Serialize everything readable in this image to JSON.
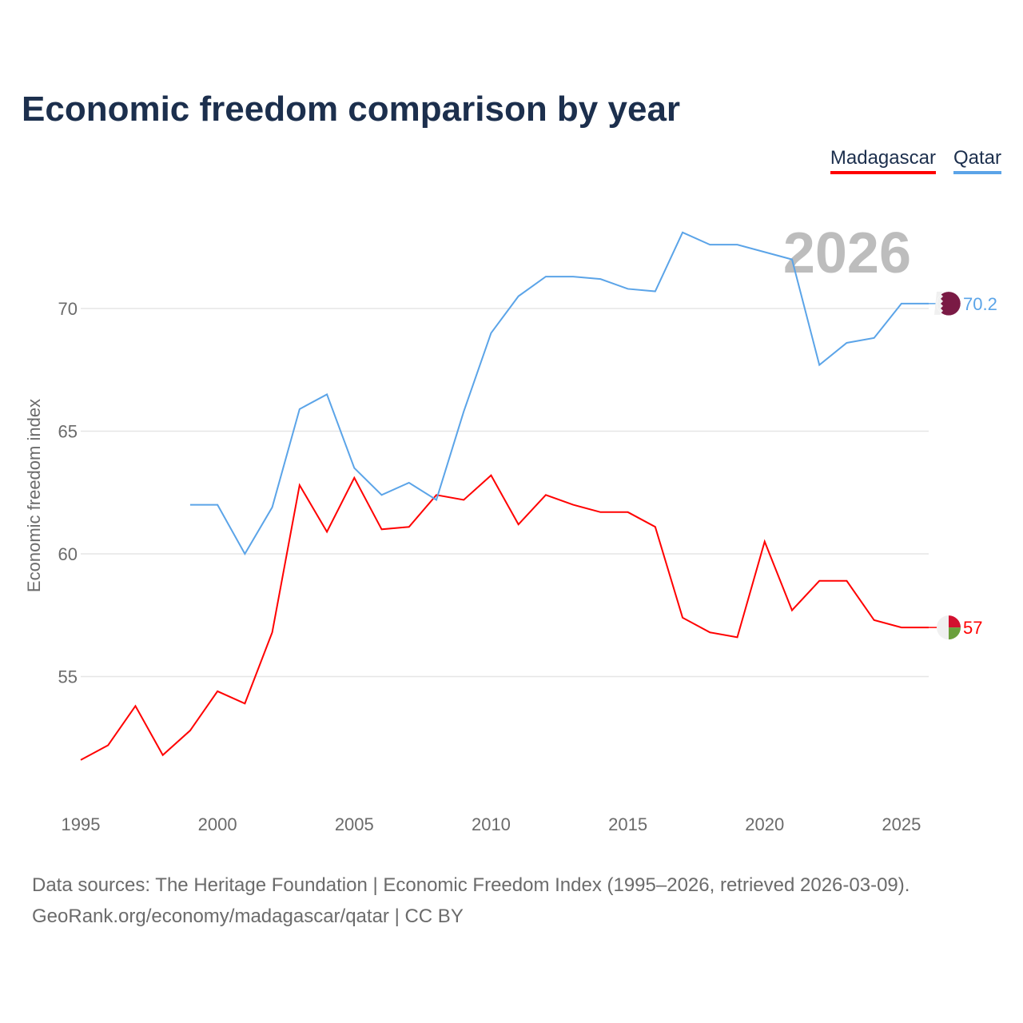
{
  "chart_data": {
    "type": "line",
    "title": "Economic freedom comparison by year",
    "xlabel": "",
    "ylabel": "Economic freedom index",
    "year_label": "2026",
    "xlim": [
      1995,
      2026
    ],
    "ylim": [
      50.5,
      74
    ],
    "x_ticks": [
      1995,
      2000,
      2005,
      2010,
      2015,
      2020,
      2025
    ],
    "y_ticks": [
      55,
      60,
      65,
      70
    ],
    "grid": true,
    "legend_placement": "top-right",
    "series": [
      {
        "name": "Madagascar",
        "color": "#ff0000",
        "end_label": "57",
        "x": [
          1995,
          1996,
          1997,
          1998,
          1999,
          2000,
          2001,
          2002,
          2003,
          2004,
          2005,
          2006,
          2007,
          2008,
          2009,
          2010,
          2011,
          2012,
          2013,
          2014,
          2015,
          2016,
          2017,
          2018,
          2019,
          2020,
          2021,
          2022,
          2023,
          2024,
          2025,
          2026
        ],
        "values": [
          51.6,
          52.2,
          53.8,
          51.8,
          52.8,
          54.4,
          53.9,
          56.8,
          62.8,
          60.9,
          63.1,
          61.0,
          61.1,
          62.4,
          62.2,
          63.2,
          61.2,
          62.4,
          62.0,
          61.7,
          61.7,
          61.1,
          57.4,
          56.8,
          56.6,
          60.5,
          57.7,
          58.9,
          58.9,
          57.3,
          57.0,
          57.0
        ]
      },
      {
        "name": "Qatar",
        "color": "#5ba4e8",
        "end_label": "70.2",
        "x": [
          1999,
          2000,
          2001,
          2002,
          2003,
          2004,
          2005,
          2006,
          2007,
          2008,
          2009,
          2010,
          2011,
          2012,
          2013,
          2014,
          2015,
          2016,
          2017,
          2018,
          2019,
          2020,
          2021,
          2022,
          2023,
          2024,
          2025,
          2026
        ],
        "values": [
          62.0,
          62.0,
          60.0,
          61.9,
          65.9,
          66.5,
          63.5,
          62.4,
          62.9,
          62.2,
          65.8,
          69.0,
          70.5,
          71.3,
          71.3,
          71.2,
          70.8,
          70.7,
          73.1,
          72.6,
          72.6,
          72.3,
          72.0,
          67.7,
          68.6,
          68.8,
          70.2,
          70.2
        ]
      }
    ]
  },
  "source": {
    "line1": "Data sources: The Heritage Foundation | Economic Freedom Index (1995–2026, retrieved 2026-03-09).",
    "line2": "GeoRank.org/economy/madagascar/qatar | CC BY"
  }
}
